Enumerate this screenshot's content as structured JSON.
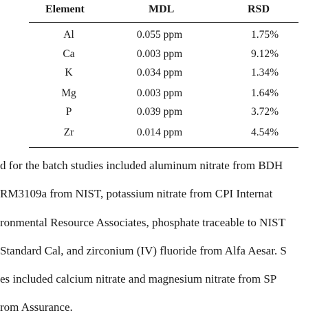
{
  "table": {
    "headers": [
      "Element",
      "MDL",
      "RSD"
    ],
    "rows": [
      {
        "element": "Al",
        "mdl": "0.055 ppm",
        "rsd": "1.75%"
      },
      {
        "element": "Ca",
        "mdl": "0.003 ppm",
        "rsd": "9.12%"
      },
      {
        "element": "K",
        "mdl": "0.034 ppm",
        "rsd": "1.34%"
      },
      {
        "element": "Mg",
        "mdl": "0.003 ppm",
        "rsd": "1.64%"
      },
      {
        "element": "P",
        "mdl": "0.039 ppm",
        "rsd": "3.72%"
      },
      {
        "element": "Zr",
        "mdl": "0.014 ppm",
        "rsd": "4.54%"
      }
    ]
  },
  "paragraph": {
    "lines": [
      "d for the batch studies included aluminum nitrate from BDH",
      "RM3109a from NIST, potassium nitrate from CPI Internat",
      "ronmental Resource Associates, phosphate traceable to NIST",
      "Standard Cal, and zirconium (IV) fluoride from Alfa Aesar. S",
      "es included calcium nitrate and magnesium nitrate from SP",
      "rom Assurance."
    ]
  }
}
